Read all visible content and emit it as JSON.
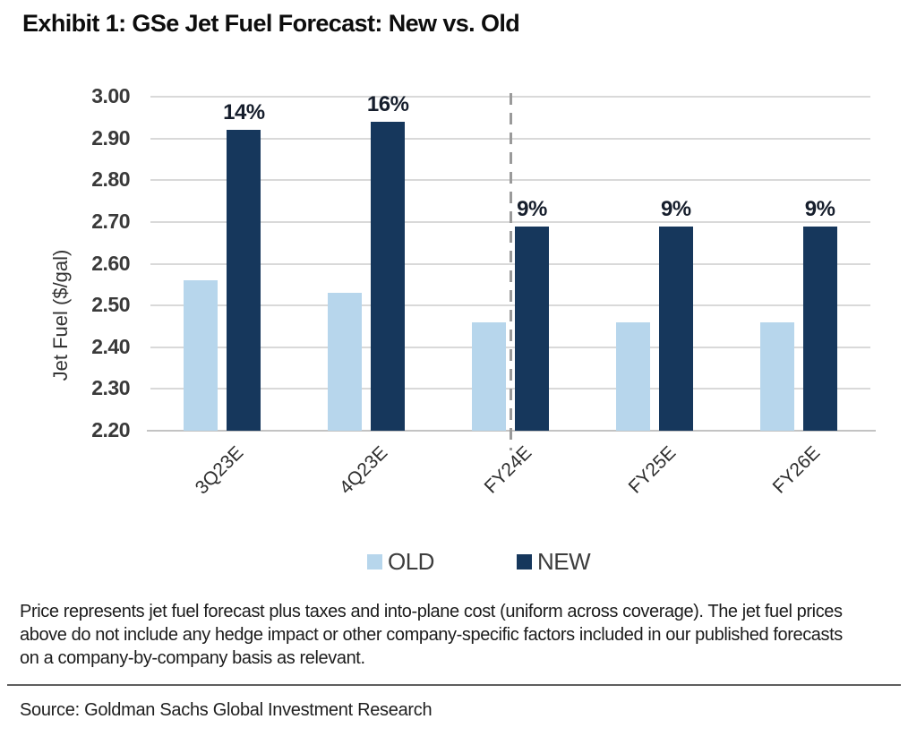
{
  "exhibit_title": "Exhibit 1: GSe Jet Fuel Forecast: New vs. Old",
  "chart_data": {
    "type": "bar",
    "categories": [
      "3Q23E",
      "4Q23E",
      "FY24E",
      "FY25E",
      "FY26E"
    ],
    "series": [
      {
        "name": "OLD",
        "color": "#b7d6ec",
        "values": [
          2.56,
          2.53,
          2.46,
          2.46,
          2.46
        ]
      },
      {
        "name": "NEW",
        "color": "#16375c",
        "values": [
          2.92,
          2.94,
          2.69,
          2.69,
          2.69
        ]
      }
    ],
    "bar_labels": {
      "series": "NEW",
      "values": [
        "14%",
        "16%",
        "9%",
        "9%",
        "9%"
      ]
    },
    "title": "",
    "xlabel": "",
    "ylabel": "Jet Fuel ($/gal)",
    "ylim": [
      2.2,
      3.0
    ],
    "yticks": [
      "3.00",
      "2.90",
      "2.80",
      "2.70",
      "2.60",
      "2.50",
      "2.40",
      "2.30",
      "2.20"
    ],
    "grid": "horizontal",
    "gridline_color": "#d9d9d9",
    "legend_position": "bottom",
    "separator": {
      "category": "FY24E",
      "position": "center",
      "style": "dashed",
      "color": "#9a9a9a"
    }
  },
  "legend": {
    "items": [
      {
        "label": "OLD",
        "color": "#b7d6ec"
      },
      {
        "label": "NEW",
        "color": "#16375c"
      }
    ]
  },
  "footnote": "Price represents jet fuel forecast plus taxes and into-plane cost (uniform across coverage). The jet fuel prices above do not include any hedge impact or other company-specific factors included in our published forecasts on a company-by-company basis as relevant.",
  "source": "Source: Goldman Sachs Global Investment Research"
}
